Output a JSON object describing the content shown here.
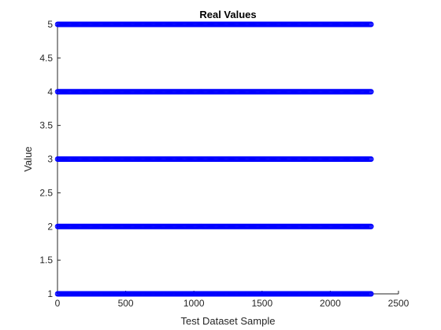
{
  "chart_data": {
    "type": "scatter",
    "title": "Real Values",
    "xlabel": "Test Dataset Sample",
    "ylabel": "Value",
    "xlim": [
      0,
      2500
    ],
    "ylim": [
      1,
      5
    ],
    "xticks": [
      "0",
      "500",
      "1000",
      "1500",
      "2000",
      "2500"
    ],
    "yticks": [
      "1",
      "1.5",
      "2",
      "2.5",
      "3",
      "3.5",
      "4",
      "4.5",
      "5"
    ],
    "grid": false,
    "marker": "circle-open",
    "marker_color": "#0000ff",
    "series": [
      {
        "y_levels": [
          1,
          2,
          3,
          4,
          5
        ],
        "x_range": [
          1,
          2300
        ],
        "x_step": 6
      }
    ]
  }
}
